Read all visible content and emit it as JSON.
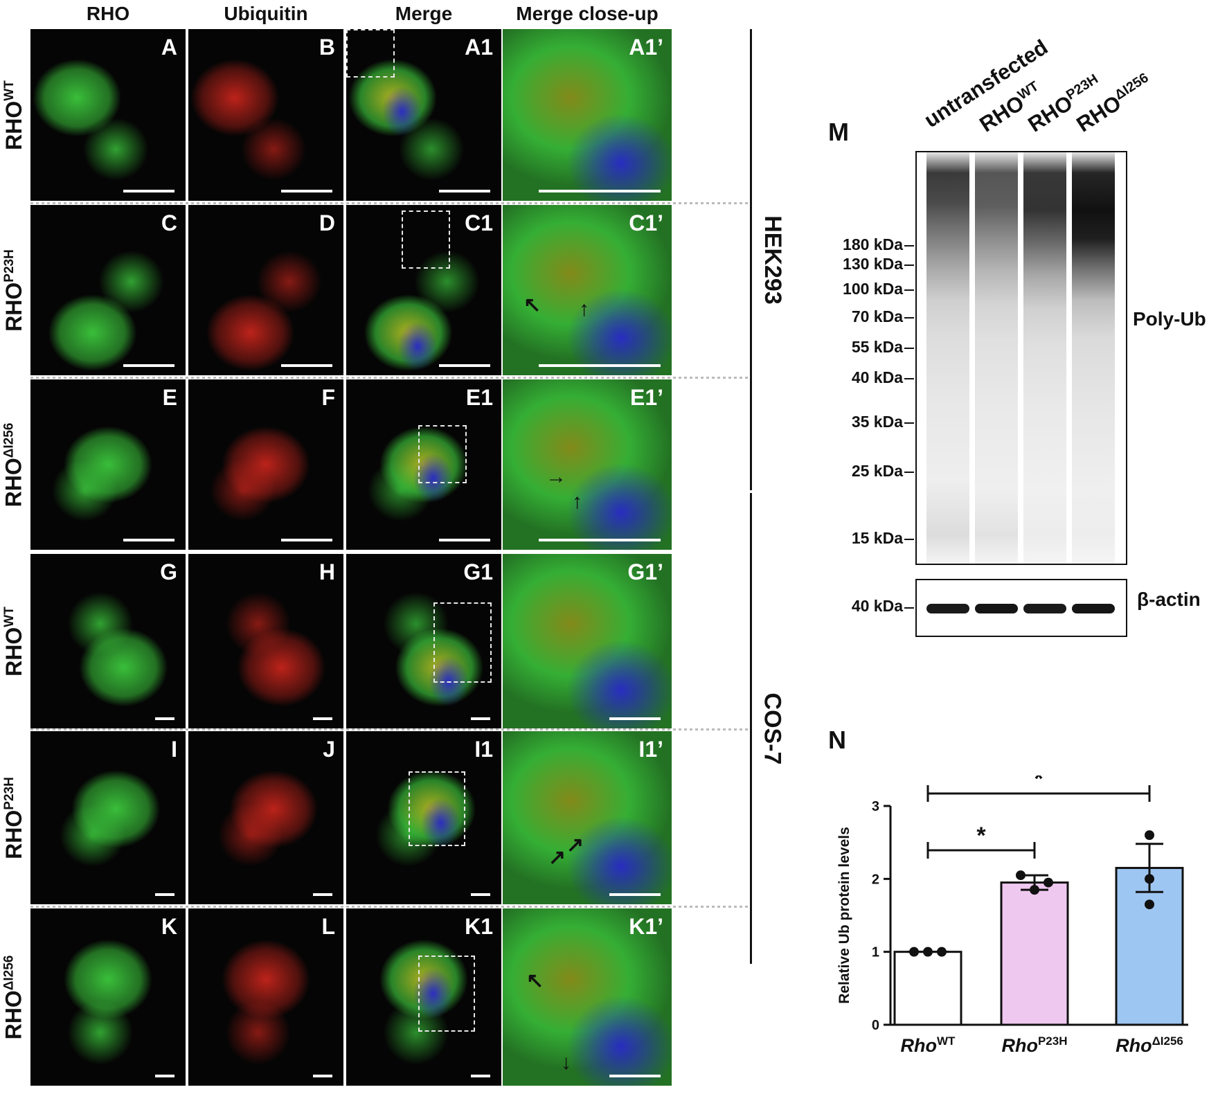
{
  "columns": [
    "RHO",
    "Ubiquitin",
    "Merge",
    "Merge close-up"
  ],
  "rows": [
    {
      "label": "RHO",
      "sup": "WT",
      "panels": [
        "A",
        "B",
        "A1",
        "A1’"
      ]
    },
    {
      "label": "RHO",
      "sup": "P23H",
      "panels": [
        "C",
        "D",
        "C1",
        "C1’"
      ]
    },
    {
      "label": "RHO",
      "sup": "ΔI256",
      "panels": [
        "E",
        "F",
        "E1",
        "E1’"
      ]
    },
    {
      "label": "RHO",
      "sup": "WT",
      "panels": [
        "G",
        "H",
        "G1",
        "G1’"
      ]
    },
    {
      "label": "RHO",
      "sup": "P23H",
      "panels": [
        "I",
        "J",
        "I1",
        "I1’"
      ]
    },
    {
      "label": "RHO",
      "sup": "ΔI256",
      "panels": [
        "K",
        "L",
        "K1",
        "K1’"
      ]
    }
  ],
  "cell_lines": [
    "HEK293",
    "COS-7"
  ],
  "blot": {
    "panel_letter": "M",
    "lanes": [
      {
        "label": "untransfected",
        "sup": ""
      },
      {
        "label": "RHO",
        "sup": "WT"
      },
      {
        "label": "RHO",
        "sup": "P23H"
      },
      {
        "label": "RHO",
        "sup": "ΔI256"
      }
    ],
    "markers": [
      "180 kDa",
      "130 kDa",
      "100 kDa",
      "70 kDa",
      "55 kDa",
      "40 kDa",
      "35 kDa",
      "25 kDa",
      "15 kDa"
    ],
    "main_label": "Poly-Ub",
    "actin_marker": "40 kDa",
    "actin_label": "β-actin"
  },
  "chart_data": {
    "type": "bar",
    "panel_letter": "N",
    "categories": [
      {
        "name": "Rho",
        "sup": "WT"
      },
      {
        "name": "Rho",
        "sup": "P23H"
      },
      {
        "name": "Rho",
        "sup": "ΔI256"
      }
    ],
    "values": [
      1.0,
      1.95,
      2.15
    ],
    "sem": [
      0.0,
      0.1,
      0.33
    ],
    "points": [
      [
        1.0,
        1.0,
        1.0
      ],
      [
        2.05,
        1.85,
        1.95
      ],
      [
        2.6,
        2.0,
        1.65
      ]
    ],
    "colors": [
      "#ffffff",
      "#efc8f0",
      "#9ec6f2"
    ],
    "ylabel": "Relative Ub protein levels",
    "ylim": [
      0,
      3
    ],
    "yticks": [
      "0",
      "1",
      "2",
      "3"
    ],
    "significance": [
      {
        "from": 0,
        "to": 1,
        "label": "*"
      },
      {
        "from": 0,
        "to": 2,
        "label": "*"
      }
    ]
  }
}
